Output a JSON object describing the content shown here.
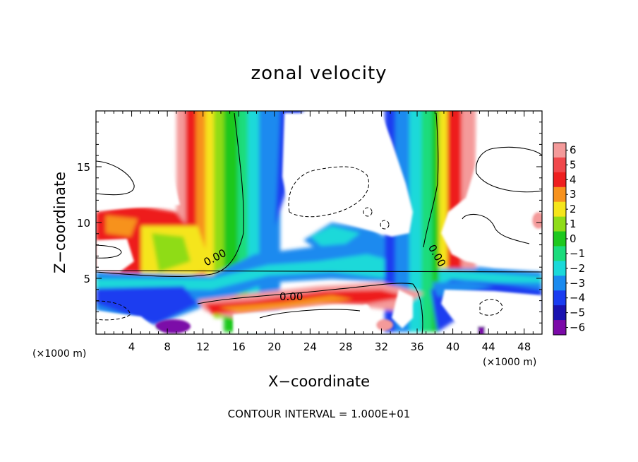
{
  "chart_data": {
    "type": "heatmap",
    "title": "zonal velocity",
    "xlabel": "X−coordinate",
    "ylabel": "Z−coordinate",
    "x_unit_left": "(×1000 m)",
    "x_unit_right": "(×1000 m)",
    "xlim": [
      0,
      50
    ],
    "ylim": [
      0,
      20
    ],
    "x_ticks": [
      4,
      8,
      12,
      16,
      20,
      24,
      28,
      32,
      36,
      40,
      44,
      48
    ],
    "y_ticks": [
      5,
      10,
      15
    ],
    "colorbar": {
      "levels": [
        6,
        5,
        4,
        3,
        2,
        1,
        0,
        -1,
        -2,
        -3,
        -4,
        -5,
        -6
      ],
      "labels": [
        "6",
        "5",
        "4",
        "3",
        "2",
        "1",
        "0",
        "−1",
        "−2",
        "−3",
        "−4",
        "−5",
        "−6"
      ],
      "colors": [
        "#f49a9a",
        "#f0484c",
        "#ee1f1f",
        "#f7921d",
        "#f5e51a",
        "#8fdc18",
        "#1ec81e",
        "#1bdc7c",
        "#1ad9d9",
        "#1a8aef",
        "#1a3cf0",
        "#1a12b0",
        "#7b0aa8"
      ]
    },
    "contour_labels": [
      {
        "text": "0.00",
        "x": 10.5,
        "z": 7.3
      },
      {
        "text": "0.00",
        "x": 22.5,
        "z": 3.4
      },
      {
        "text": "0.00",
        "x": 37.5,
        "z": 7.3
      }
    ],
    "footer": "CONTOUR INTERVAL = 1.000E+01",
    "grid": false
  }
}
